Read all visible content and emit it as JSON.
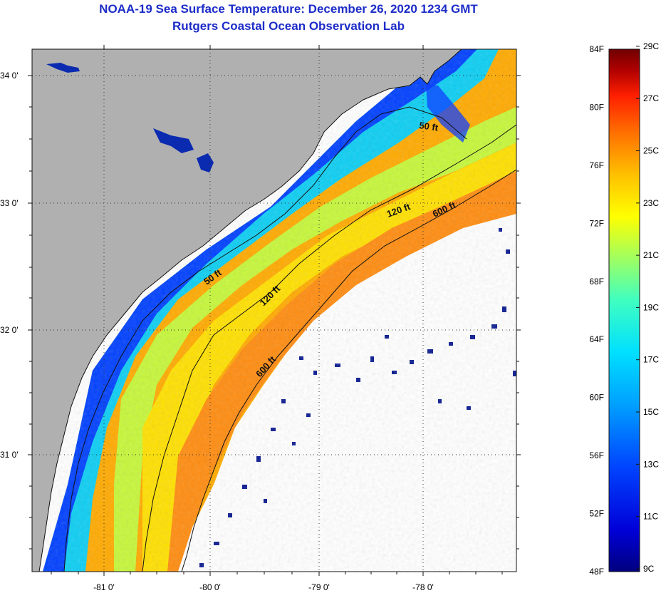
{
  "title": {
    "line1": "NOAA-19 Sea Surface Temperature:  December 26, 2020 1234 GMT",
    "line2": "Rutgers Coastal Ocean Observation Lab"
  },
  "map": {
    "lat_labels": [
      "34 0'",
      "33 0'",
      "32 0'",
      "31 0'"
    ],
    "lon_labels": [
      "-81 0'",
      "-80 0'",
      "-79 0'",
      "-78 0'"
    ],
    "contour_labels": [
      "50 ft",
      "120 ft",
      "600 ft",
      "50 ft",
      "120 ft",
      "600 ft"
    ],
    "colors": {
      "land": "#b0b0b0",
      "cloud": "#ffffff",
      "grid": "#333333"
    }
  },
  "colorbar": {
    "fahrenheit_labels": [
      "84F",
      "80F",
      "76F",
      "72F",
      "68F",
      "64F",
      "60F",
      "56F",
      "52F",
      "48F"
    ],
    "celsius_labels": [
      "29C",
      "27C",
      "25C",
      "23C",
      "21C",
      "19C",
      "17C",
      "15C",
      "13C",
      "11C",
      "9C"
    ],
    "gradient_stops": [
      "#00007f",
      "#0000d8",
      "#0044ff",
      "#00a0ff",
      "#00e0ff",
      "#40ffc0",
      "#a0ff60",
      "#ffff00",
      "#ffc000",
      "#ff7000",
      "#ff2000",
      "#b00000",
      "#700000"
    ]
  }
}
